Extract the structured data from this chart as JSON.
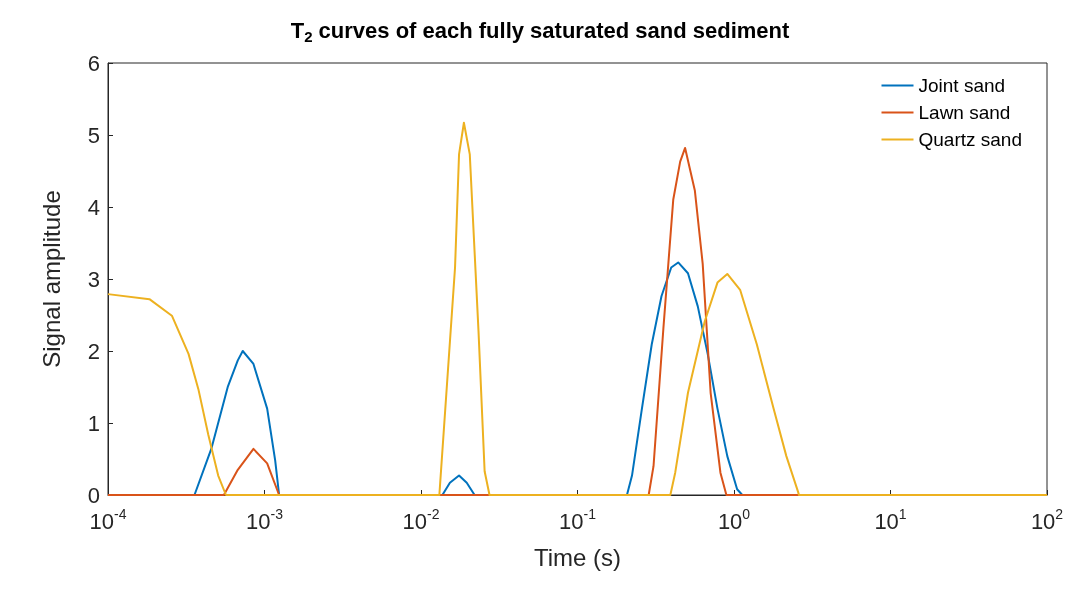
{
  "chart_data": {
    "type": "line",
    "title": "T$_{2}$ curves of each fully saturated sand sediment",
    "xlabel": "Time (s)",
    "ylabel": "Signal amplitude",
    "log": "x",
    "grid": false,
    "legend": "top right",
    "marker": "none",
    "line_style": "solid",
    "xlim": [
      0.0001,
      100
    ],
    "xticks": [
      {
        "value": 0.0001,
        "label": "10$^{-4}$"
      },
      {
        "value": 0.001,
        "label": "10$^{-3}$"
      },
      {
        "value": 0.01,
        "label": "10$^{-2}$"
      },
      {
        "value": 0.1,
        "label": "10$^{-1}$"
      },
      {
        "value": 1,
        "label": "10$^{0}$"
      },
      {
        "value": 10,
        "label": "10$^{1}$"
      },
      {
        "value": 100,
        "label": "10$^{2}$"
      }
    ],
    "ylim": [
      0,
      6
    ],
    "yticks": [
      0,
      1,
      2,
      3,
      4,
      5,
      6
    ],
    "series": [
      {
        "name": "Joint sand",
        "color": "#0072bd",
        "x": [
          0.0001,
          0.000357,
          0.000457,
          0.000584,
          0.000675,
          0.000726,
          0.00085,
          0.00104,
          0.00117,
          0.00124,
          0.0137,
          0.0153,
          0.0175,
          0.0196,
          0.022,
          0.207,
          0.223,
          0.258,
          0.298,
          0.344,
          0.397,
          0.44,
          0.508,
          0.587,
          0.679,
          0.784,
          0.906,
          1.047,
          1.13,
          100
        ],
        "values": [
          0,
          0,
          0.64,
          1.51,
          1.87,
          2.0,
          1.82,
          1.2,
          0.48,
          0,
          0,
          0.17,
          0.27,
          0.17,
          0,
          0,
          0.27,
          1.2,
          2.09,
          2.76,
          3.16,
          3.23,
          3.08,
          2.62,
          1.96,
          1.2,
          0.54,
          0.08,
          0,
          0
        ]
      },
      {
        "name": "Lawn sand",
        "color": "#d95319",
        "x": [
          0.0001,
          0.00055,
          0.000675,
          0.00085,
          0.00104,
          0.00124,
          0.285,
          0.306,
          0.354,
          0.409,
          0.453,
          0.487,
          0.562,
          0.631,
          0.709,
          0.819,
          0.894,
          100
        ],
        "values": [
          0,
          0,
          0.35,
          0.64,
          0.44,
          0,
          0,
          0.4,
          2.32,
          4.1,
          4.63,
          4.82,
          4.23,
          3.21,
          1.42,
          0.31,
          0,
          0
        ]
      },
      {
        "name": "Quartz sand",
        "color": "#edb120",
        "x": [
          0.0001,
          0.000184,
          0.000256,
          0.000327,
          0.000378,
          0.000437,
          0.000506,
          0.000567,
          0.0131,
          0.0165,
          0.0175,
          0.0188,
          0.0205,
          0.0233,
          0.0255,
          0.0274,
          0.392,
          0.421,
          0.508,
          0.65,
          0.784,
          0.906,
          1.094,
          1.4,
          1.79,
          2.16,
          2.57,
          2.6,
          100
        ],
        "values": [
          2.79,
          2.72,
          2.49,
          1.96,
          1.47,
          0.84,
          0.27,
          0,
          0,
          3.16,
          4.73,
          5.17,
          4.73,
          2.28,
          0.33,
          0,
          0,
          0.31,
          1.42,
          2.41,
          2.95,
          3.07,
          2.85,
          2.09,
          1.2,
          0.54,
          0.04,
          0,
          0
        ]
      }
    ]
  }
}
